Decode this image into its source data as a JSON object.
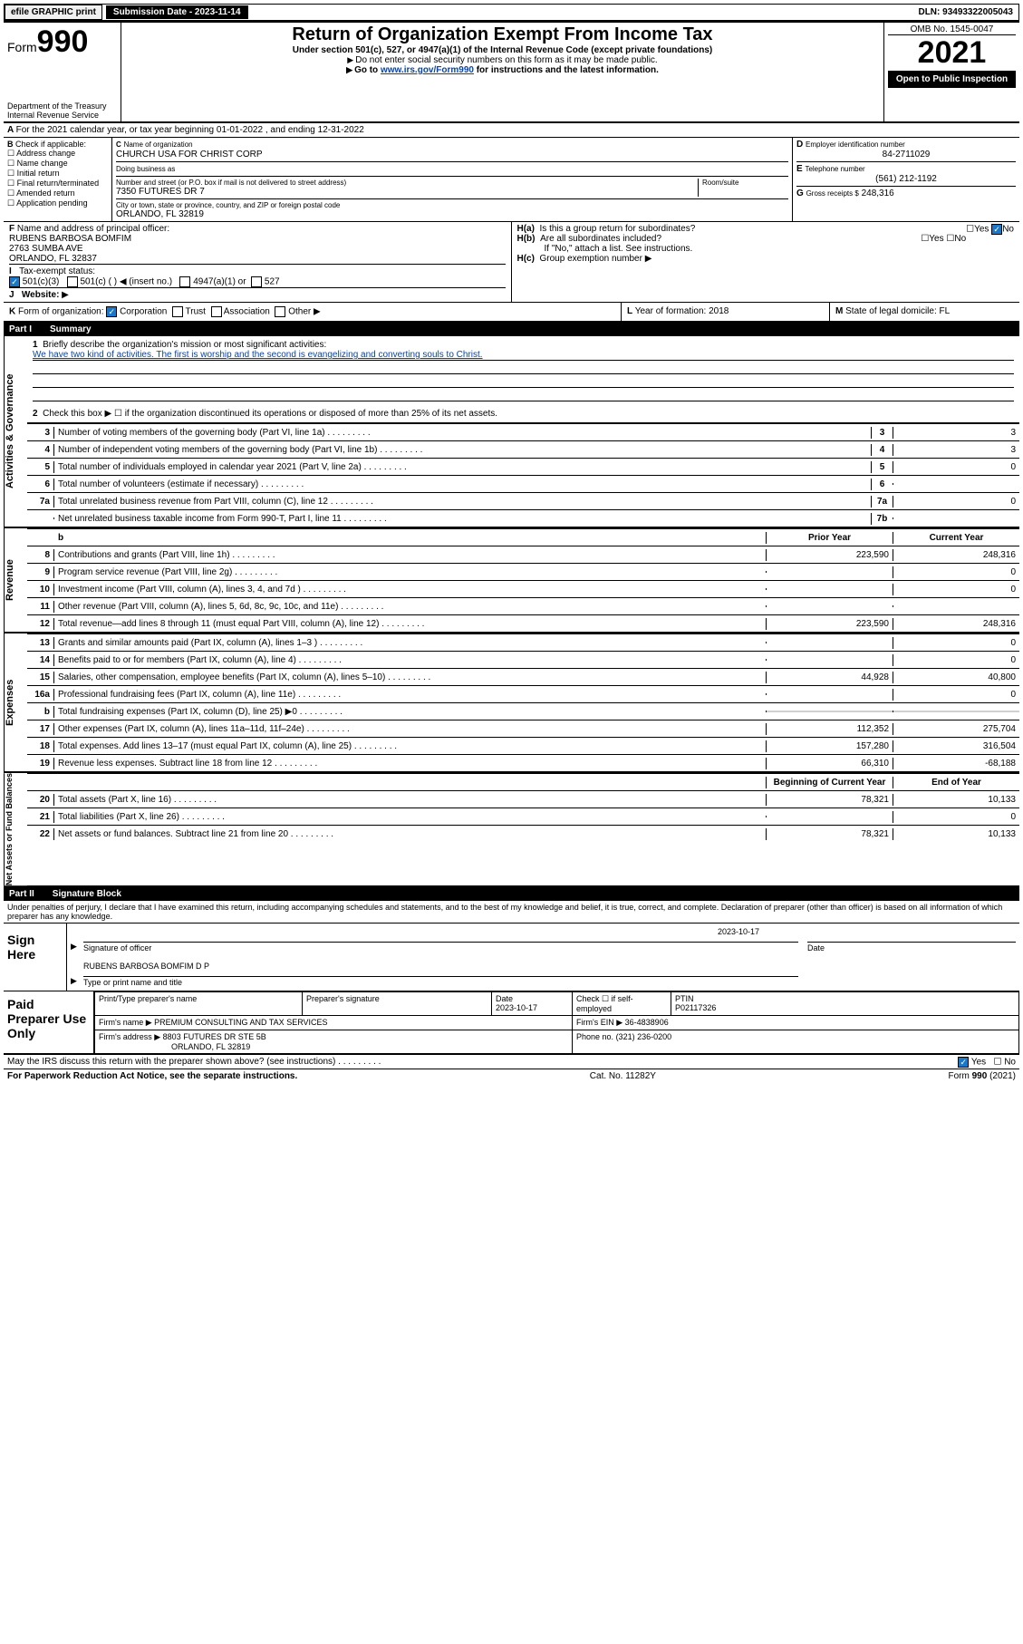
{
  "topbar": {
    "efile": "efile GRAPHIC print",
    "submission_label": "Submission Date - 2023-11-14",
    "dln": "DLN: 93493322005043"
  },
  "header": {
    "form_word": "Form",
    "form_no": "990",
    "dept": "Department of the Treasury",
    "irs": "Internal Revenue Service",
    "title": "Return of Organization Exempt From Income Tax",
    "sub1": "Under section 501(c), 527, or 4947(a)(1) of the Internal Revenue Code (except private foundations)",
    "sub2": "Do not enter social security numbers on this form as it may be made public.",
    "sub3_pre": "Go to ",
    "sub3_link": "www.irs.gov/Form990",
    "sub3_post": " for instructions and the latest information.",
    "omb": "OMB No. 1545-0047",
    "year": "2021",
    "open": "Open to Public Inspection"
  },
  "A": {
    "text": "For the 2021 calendar year, or tax year beginning 01-01-2022   , and ending 12-31-2022"
  },
  "B": {
    "label": "Check if applicable:",
    "opts": [
      "Address change",
      "Name change",
      "Initial return",
      "Final return/terminated",
      "Amended return",
      "Application pending"
    ]
  },
  "C": {
    "name_label": "Name of organization",
    "name": "CHURCH USA FOR CHRIST CORP",
    "dba_label": "Doing business as",
    "addr_label": "Number and street (or P.O. box if mail is not delivered to street address)",
    "room_label": "Room/suite",
    "addr": "7350 FUTURES DR 7",
    "city_label": "City or town, state or province, country, and ZIP or foreign postal code",
    "city": "ORLANDO, FL  32819"
  },
  "D": {
    "label": "Employer identification number",
    "val": "84-2711029"
  },
  "E": {
    "label": "Telephone number",
    "val": "(561) 212-1192"
  },
  "G": {
    "label": "Gross receipts $",
    "val": "248,316"
  },
  "F": {
    "label": "Name and address of principal officer:",
    "name": "RUBENS BARBOSA BOMFIM",
    "addr1": "2763 SUMBA AVE",
    "addr2": "ORLANDO, FL  32837"
  },
  "H": {
    "a": "Is this a group return for subordinates?",
    "b": "Are all subordinates included?",
    "note": "If \"No,\" attach a list. See instructions.",
    "c": "Group exemption number"
  },
  "I": {
    "label": "Tax-exempt status:",
    "opts": [
      "501(c)(3)",
      "501(c) (  ) ◀ (insert no.)",
      "4947(a)(1) or",
      "527"
    ]
  },
  "J": {
    "label": "Website:"
  },
  "K": {
    "label": "Form of organization:",
    "opts": [
      "Corporation",
      "Trust",
      "Association",
      "Other"
    ]
  },
  "L": {
    "label": "Year of formation:",
    "val": "2018"
  },
  "M": {
    "label": "State of legal domicile:",
    "val": "FL"
  },
  "part1": {
    "header_pt": "Part I",
    "header_ttl": "Summary",
    "q1_label": "Briefly describe the organization's mission or most significant activities:",
    "q1_text": "We have two kind of activities. The first is worship and the second is evangelizing and converting souls to Christ.",
    "q2": "Check this box ▶ ☐  if the organization discontinued its operations or disposed of more than 25% of its net assets.",
    "rows_ag": [
      {
        "n": "3",
        "t": "Number of voting members of the governing body (Part VI, line 1a)",
        "box": "3",
        "val": "3"
      },
      {
        "n": "4",
        "t": "Number of independent voting members of the governing body (Part VI, line 1b)",
        "box": "4",
        "val": "3"
      },
      {
        "n": "5",
        "t": "Total number of individuals employed in calendar year 2021 (Part V, line 2a)",
        "box": "5",
        "val": "0"
      },
      {
        "n": "6",
        "t": "Total number of volunteers (estimate if necessary)",
        "box": "6",
        "val": ""
      },
      {
        "n": "7a",
        "t": "Total unrelated business revenue from Part VIII, column (C), line 12",
        "box": "7a",
        "val": "0"
      },
      {
        "n": "",
        "t": "Net unrelated business taxable income from Form 990-T, Part I, line 11",
        "box": "7b",
        "val": ""
      }
    ],
    "col_prior": "Prior Year",
    "col_current": "Current Year",
    "rows_rev": [
      {
        "n": "8",
        "t": "Contributions and grants (Part VIII, line 1h)",
        "p": "223,590",
        "c": "248,316"
      },
      {
        "n": "9",
        "t": "Program service revenue (Part VIII, line 2g)",
        "p": "",
        "c": "0"
      },
      {
        "n": "10",
        "t": "Investment income (Part VIII, column (A), lines 3, 4, and 7d )",
        "p": "",
        "c": "0"
      },
      {
        "n": "11",
        "t": "Other revenue (Part VIII, column (A), lines 5, 6d, 8c, 9c, 10c, and 11e)",
        "p": "",
        "c": ""
      },
      {
        "n": "12",
        "t": "Total revenue—add lines 8 through 11 (must equal Part VIII, column (A), line 12)",
        "p": "223,590",
        "c": "248,316"
      }
    ],
    "rows_exp": [
      {
        "n": "13",
        "t": "Grants and similar amounts paid (Part IX, column (A), lines 1–3 )",
        "p": "",
        "c": "0"
      },
      {
        "n": "14",
        "t": "Benefits paid to or for members (Part IX, column (A), line 4)",
        "p": "",
        "c": "0"
      },
      {
        "n": "15",
        "t": "Salaries, other compensation, employee benefits (Part IX, column (A), lines 5–10)",
        "p": "44,928",
        "c": "40,800"
      },
      {
        "n": "16a",
        "t": "Professional fundraising fees (Part IX, column (A), line 11e)",
        "p": "",
        "c": "0"
      },
      {
        "n": "b",
        "t": "Total fundraising expenses (Part IX, column (D), line 25) ▶0",
        "p": "SHADE",
        "c": "SHADE"
      },
      {
        "n": "17",
        "t": "Other expenses (Part IX, column (A), lines 11a–11d, 11f–24e)",
        "p": "112,352",
        "c": "275,704"
      },
      {
        "n": "18",
        "t": "Total expenses. Add lines 13–17 (must equal Part IX, column (A), line 25)",
        "p": "157,280",
        "c": "316,504"
      },
      {
        "n": "19",
        "t": "Revenue less expenses. Subtract line 18 from line 12",
        "p": "66,310",
        "c": "-68,188"
      }
    ],
    "col_begin": "Beginning of Current Year",
    "col_end": "End of Year",
    "rows_na": [
      {
        "n": "20",
        "t": "Total assets (Part X, line 16)",
        "p": "78,321",
        "c": "10,133"
      },
      {
        "n": "21",
        "t": "Total liabilities (Part X, line 26)",
        "p": "",
        "c": "0"
      },
      {
        "n": "22",
        "t": "Net assets or fund balances. Subtract line 21 from line 20",
        "p": "78,321",
        "c": "10,133"
      }
    ]
  },
  "part2": {
    "header_pt": "Part II",
    "header_ttl": "Signature Block",
    "decl": "Under penalties of perjury, I declare that I have examined this return, including accompanying schedules and statements, and to the best of my knowledge and belief, it is true, correct, and complete. Declaration of preparer (other than officer) is based on all information of which preparer has any knowledge."
  },
  "sign": {
    "label": "Sign Here",
    "sig_label": "Signature of officer",
    "date_label": "Date",
    "date_val": "2023-10-17",
    "name": "RUBENS BARBOSA BOMFIM  D P",
    "name_label": "Type or print name and title"
  },
  "prep": {
    "label": "Paid Preparer Use Only",
    "h1": "Print/Type preparer's name",
    "h2": "Preparer's signature",
    "h3": "Date",
    "h3v": "2023-10-17",
    "h4": "Check ☐ if self-employed",
    "h5": "PTIN",
    "h5v": "P02117326",
    "firm_name_l": "Firm's name     ▶",
    "firm_name": "PREMIUM CONSULTING AND TAX SERVICES",
    "firm_ein_l": "Firm's EIN ▶",
    "firm_ein": "36-4838906",
    "firm_addr_l": "Firm's address ▶",
    "firm_addr1": "8803 FUTURES DR STE 5B",
    "firm_addr2": "ORLANDO, FL  32819",
    "phone_l": "Phone no.",
    "phone": "(321) 236-0200"
  },
  "may_irs": "May the IRS discuss this return with the preparer shown above? (see instructions)",
  "footer": {
    "l": "For Paperwork Reduction Act Notice, see the separate instructions.",
    "c": "Cat. No. 11282Y",
    "r": "Form 990 (2021)"
  },
  "vtabs": {
    "ag": "Activities & Governance",
    "rev": "Revenue",
    "exp": "Expenses",
    "na": "Net Assets or Fund Balances"
  }
}
